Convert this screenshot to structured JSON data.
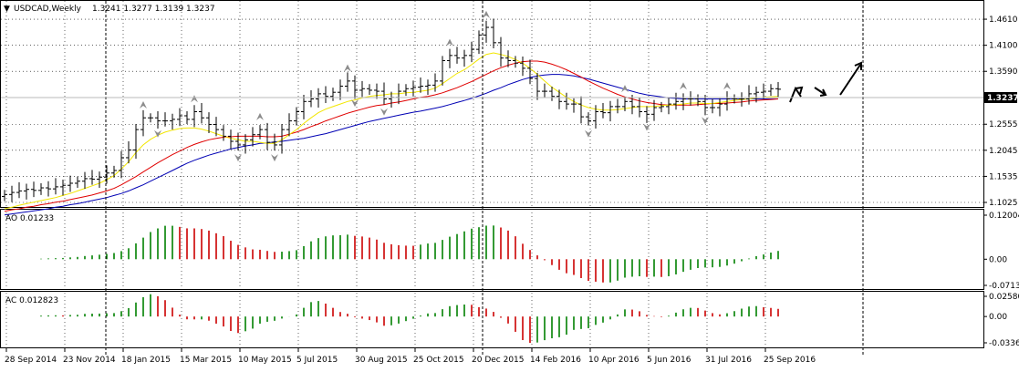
{
  "header": {
    "symbol_caption": "USDCAD,Weekly",
    "ohlc": "1.3241 1.3277 1.3139 1.3237"
  },
  "indicators": {
    "ao": {
      "caption": "AO 0.01233",
      "value": 0.01233
    },
    "ac": {
      "caption": "AC 0.012823",
      "value": 0.012823
    }
  },
  "current_price": "1.3237",
  "colors": {
    "ma_fast": "#f2e600",
    "ma_mid": "#e00000",
    "ma_slow": "#0000b4",
    "ao_up": "#008000",
    "ao_down": "#cc0000",
    "price_label_bg": "#000000"
  },
  "chart_data": [
    {
      "type": "candlestick-bars",
      "title": "USDCAD,Weekly",
      "ylim": [
        1.1025,
        1.4611
      ],
      "yticks": [
        "1.4610",
        "1.4100",
        "1.3590",
        "1.3080",
        "1.2555",
        "1.2045",
        "1.1535",
        "1.1025"
      ],
      "xticks": [
        "28 Sep 2014",
        "23 Nov 2014",
        "18 Jan 2015",
        "15 Mar 2015",
        "10 May 2015",
        "5 Jul 2015",
        "30 Aug 2015",
        "25 Oct 2015",
        "20 Dec 2015",
        "14 Feb 2016",
        "10 Apr 2016",
        "5 Jun 2016",
        "31 Jul 2016",
        "25 Sep 2016"
      ],
      "close": [
        1.118,
        1.122,
        1.125,
        1.128,
        1.126,
        1.131,
        1.129,
        1.133,
        1.136,
        1.14,
        1.144,
        1.149,
        1.148,
        1.152,
        1.16,
        1.165,
        1.19,
        1.205,
        1.245,
        1.268,
        1.268,
        1.262,
        1.262,
        1.265,
        1.272,
        1.265,
        1.28,
        1.268,
        1.255,
        1.245,
        1.232,
        1.222,
        1.215,
        1.225,
        1.235,
        1.245,
        1.22,
        1.215,
        1.245,
        1.262,
        1.28,
        1.3,
        1.305,
        1.315,
        1.31,
        1.318,
        1.33,
        1.34,
        1.322,
        1.325,
        1.322,
        1.32,
        1.305,
        1.308,
        1.32,
        1.325,
        1.328,
        1.33,
        1.332,
        1.34,
        1.38,
        1.39,
        1.385,
        1.39,
        1.402,
        1.43,
        1.445,
        1.415,
        1.385,
        1.38,
        1.375,
        1.365,
        1.345,
        1.32,
        1.32,
        1.31,
        1.3,
        1.295,
        1.295,
        1.27,
        1.262,
        1.28,
        1.278,
        1.29,
        1.29,
        1.3,
        1.29,
        1.28,
        1.275,
        1.288,
        1.29,
        1.295,
        1.3,
        1.305,
        1.305,
        1.3,
        1.288,
        1.288,
        1.295,
        1.305,
        1.305,
        1.305,
        1.315,
        1.318,
        1.32,
        1.325,
        1.324
      ],
      "ma_fast": [
        1.09,
        1.093,
        1.097,
        1.1,
        1.103,
        1.106,
        1.109,
        1.112,
        1.116,
        1.12,
        1.125,
        1.13,
        1.135,
        1.14,
        1.147,
        1.155,
        1.168,
        1.182,
        1.2,
        1.215,
        1.226,
        1.234,
        1.24,
        1.244,
        1.247,
        1.248,
        1.248,
        1.246,
        1.242,
        1.237,
        1.232,
        1.228,
        1.225,
        1.222,
        1.222,
        1.22,
        1.218,
        1.218,
        1.225,
        1.235,
        1.245,
        1.257,
        1.268,
        1.278,
        1.285,
        1.29,
        1.295,
        1.3,
        1.303,
        1.307,
        1.31,
        1.312,
        1.313,
        1.315,
        1.315,
        1.317,
        1.318,
        1.32,
        1.322,
        1.326,
        1.335,
        1.345,
        1.355,
        1.362,
        1.372,
        1.383,
        1.392,
        1.395,
        1.392,
        1.388,
        1.382,
        1.375,
        1.365,
        1.353,
        1.34,
        1.328,
        1.318,
        1.308,
        1.3,
        1.293,
        1.288,
        1.285,
        1.283,
        1.283,
        1.284,
        1.286,
        1.288,
        1.29,
        1.29,
        1.29,
        1.292,
        1.293,
        1.294,
        1.295,
        1.297,
        1.297,
        1.296,
        1.296,
        1.298,
        1.3,
        1.302,
        1.304,
        1.305,
        1.307,
        1.308,
        1.309,
        1.31
      ],
      "ma_mid": [
        1.085,
        1.088,
        1.09,
        1.093,
        1.095,
        1.098,
        1.1,
        1.103,
        1.105,
        1.108,
        1.111,
        1.114,
        1.117,
        1.121,
        1.125,
        1.13,
        1.137,
        1.145,
        1.153,
        1.162,
        1.171,
        1.18,
        1.188,
        1.196,
        1.203,
        1.21,
        1.216,
        1.221,
        1.225,
        1.228,
        1.23,
        1.231,
        1.232,
        1.232,
        1.232,
        1.232,
        1.231,
        1.231,
        1.232,
        1.236,
        1.24,
        1.245,
        1.251,
        1.256,
        1.262,
        1.267,
        1.272,
        1.277,
        1.281,
        1.285,
        1.289,
        1.292,
        1.294,
        1.297,
        1.299,
        1.302,
        1.305,
        1.308,
        1.31,
        1.313,
        1.317,
        1.322,
        1.327,
        1.333,
        1.339,
        1.346,
        1.353,
        1.36,
        1.366,
        1.371,
        1.375,
        1.378,
        1.379,
        1.379,
        1.377,
        1.373,
        1.368,
        1.362,
        1.355,
        1.348,
        1.34,
        1.333,
        1.326,
        1.32,
        1.314,
        1.309,
        1.305,
        1.301,
        1.298,
        1.296,
        1.294,
        1.293,
        1.293,
        1.293,
        1.293,
        1.294,
        1.295,
        1.296,
        1.296,
        1.297,
        1.298,
        1.299,
        1.301,
        1.302,
        1.303,
        1.304,
        1.305
      ],
      "ma_slow": [
        1.078,
        1.08,
        1.082,
        1.084,
        1.086,
        1.088,
        1.09,
        1.093,
        1.095,
        1.098,
        1.1,
        1.103,
        1.106,
        1.109,
        1.112,
        1.116,
        1.12,
        1.125,
        1.131,
        1.137,
        1.144,
        1.151,
        1.158,
        1.165,
        1.172,
        1.179,
        1.185,
        1.19,
        1.195,
        1.199,
        1.203,
        1.207,
        1.21,
        1.213,
        1.215,
        1.218,
        1.219,
        1.221,
        1.222,
        1.224,
        1.226,
        1.228,
        1.231,
        1.234,
        1.237,
        1.241,
        1.245,
        1.249,
        1.253,
        1.257,
        1.261,
        1.264,
        1.267,
        1.27,
        1.273,
        1.276,
        1.279,
        1.281,
        1.284,
        1.287,
        1.29,
        1.294,
        1.298,
        1.302,
        1.306,
        1.311,
        1.316,
        1.322,
        1.327,
        1.333,
        1.338,
        1.343,
        1.347,
        1.35,
        1.352,
        1.353,
        1.353,
        1.352,
        1.35,
        1.347,
        1.344,
        1.34,
        1.336,
        1.332,
        1.328,
        1.324,
        1.32,
        1.316,
        1.313,
        1.311,
        1.309,
        1.307,
        1.306,
        1.305,
        1.305,
        1.305,
        1.305,
        1.305,
        1.305,
        1.305,
        1.305,
        1.305,
        1.305,
        1.305,
        1.305,
        1.305,
        1.305
      ]
    },
    {
      "type": "bar",
      "title": "AO 0.01233",
      "ylim": [
        -0.07134,
        0.12004
      ],
      "yticks": [
        "0.12004",
        "0.00",
        "-0.07134"
      ]
    },
    {
      "type": "bar",
      "title": "AC 0.012823",
      "ylim": [
        -0.03361,
        0.0258
      ],
      "yticks": [
        "0.025802",
        "0.00",
        "-0.03361"
      ]
    }
  ]
}
